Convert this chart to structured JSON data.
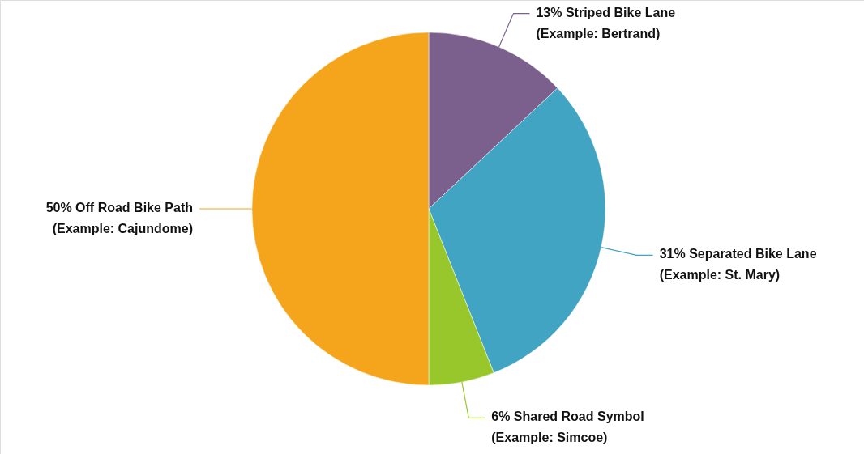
{
  "chart_data": {
    "type": "pie",
    "categories": [
      "Striped Bike Lane (Example: Bertrand)",
      "Separated Bike Lane (Example: St. Mary)",
      "Shared Road Symbol (Example: Simcoe)",
      "Off Road Bike Path (Example: Cajundome)"
    ],
    "values": [
      13,
      31,
      6,
      50
    ],
    "value_labels": [
      "13%",
      "31%",
      "6%",
      "50%"
    ],
    "colors": [
      "#7b5f8c",
      "#40a4c2",
      "#97c72b",
      "#f4a51c"
    ]
  }
}
